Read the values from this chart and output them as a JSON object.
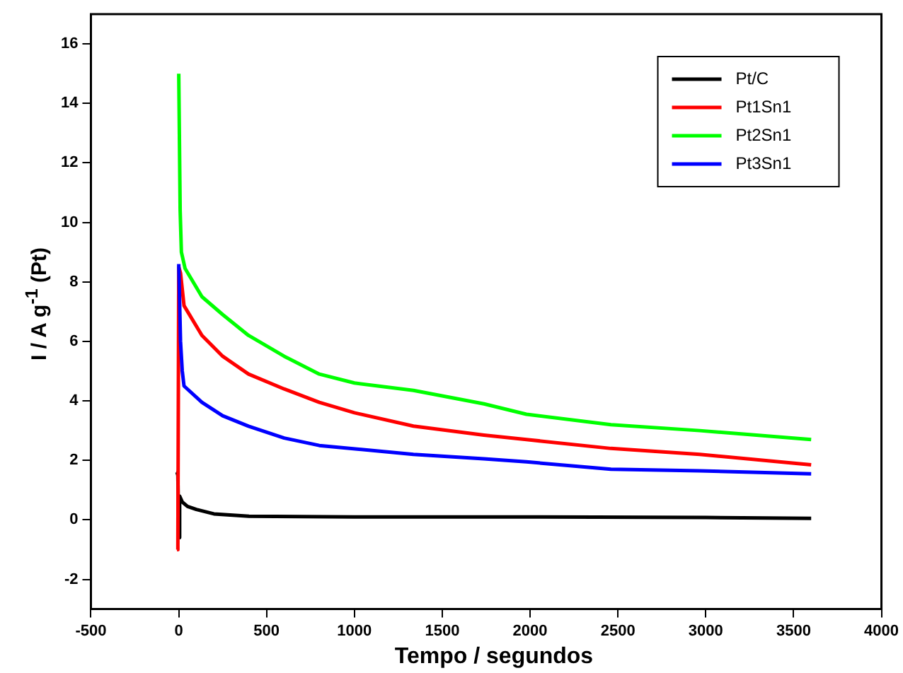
{
  "chart_data": {
    "type": "line",
    "xlabel": "Tempo / segundos",
    "ylabel": "I / A g$^{-1}$ (Pt)",
    "xlim": [
      -500,
      4000
    ],
    "xticks": [
      -500,
      0,
      500,
      1000,
      1500,
      2000,
      2500,
      3000,
      3500,
      4000
    ],
    "ylim": [
      -3,
      17
    ],
    "yticks": [
      -2,
      0,
      2,
      4,
      6,
      8,
      10,
      12,
      14,
      16
    ],
    "grid": false,
    "legend": "top right",
    "marker": "none",
    "line_style": "solid",
    "series": [
      {
        "name": "Pt/C",
        "color": "#000000",
        "x": [
          -10,
          -5,
          0,
          5,
          20,
          50,
          100,
          200,
          400,
          1000,
          2000,
          3000,
          3600
        ],
        "values": [
          1.6,
          1.5,
          -0.6,
          0.8,
          0.6,
          0.45,
          0.35,
          0.2,
          0.12,
          0.1,
          0.1,
          0.08,
          0.05
        ]
      },
      {
        "name": "Pt1Sn1",
        "color": "#ff0000",
        "x": [
          -10,
          -5,
          0,
          10,
          30,
          132,
          250,
          397,
          600,
          800,
          1000,
          1336,
          1737,
          1979,
          2460,
          2966,
          3600
        ],
        "values": [
          -1.0,
          -0.9,
          8.5,
          8.3,
          7.2,
          6.2,
          5.5,
          4.9,
          4.4,
          3.95,
          3.6,
          3.15,
          2.85,
          2.7,
          2.4,
          2.2,
          1.85
        ]
      },
      {
        "name": "Pt2Sn1",
        "color": "#00ff00",
        "x": [
          0,
          8,
          15,
          36,
          132,
          250,
          397,
          600,
          800,
          1000,
          1336,
          1737,
          1979,
          2460,
          2966,
          3600
        ],
        "values": [
          15,
          10.4,
          9,
          8.45,
          7.5,
          6.9,
          6.2,
          5.5,
          4.9,
          4.6,
          4.35,
          3.9,
          3.55,
          3.2,
          3.0,
          2.7
        ]
      },
      {
        "name": "Pt3Sn1",
        "color": "#0000ff",
        "x": [
          0,
          10,
          20,
          30,
          132,
          250,
          397,
          600,
          800,
          1336,
          1737,
          1979,
          2460,
          2966,
          3600
        ],
        "values": [
          8.6,
          6.0,
          5.0,
          4.5,
          3.95,
          3.5,
          3.15,
          2.75,
          2.5,
          2.2,
          2.05,
          1.95,
          1.7,
          1.65,
          1.55
        ]
      }
    ]
  }
}
